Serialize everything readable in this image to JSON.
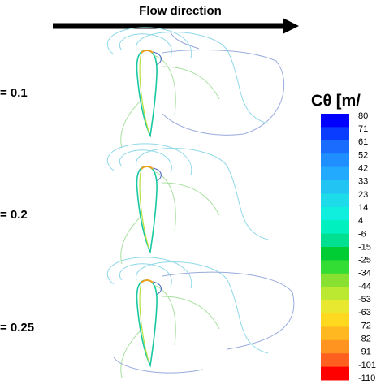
{
  "header": {
    "arrow_label": "Flow direction"
  },
  "panels": [
    {
      "label": "= 0.1"
    },
    {
      "label": "= 0.2"
    },
    {
      "label": "= 0.25"
    }
  ],
  "colorbar": {
    "title": "Cθ [m/",
    "levels": [
      80,
      71,
      61,
      52,
      42,
      33,
      23,
      14,
      4,
      -6,
      -15,
      -25,
      -34,
      -44,
      -53,
      -63,
      -72,
      -82,
      -91,
      -101,
      -110
    ],
    "colors": [
      "#0000ff",
      "#0a3cff",
      "#1a6cff",
      "#1f8fff",
      "#22aaff",
      "#22c4f4",
      "#1ddbe8",
      "#10eedd",
      "#00f0c0",
      "#00e090",
      "#00cc33",
      "#33dd33",
      "#88e030",
      "#bbe830",
      "#e8e830",
      "#ffd820",
      "#ffb820",
      "#ff9420",
      "#ff6020",
      "#ff0000"
    ]
  }
}
